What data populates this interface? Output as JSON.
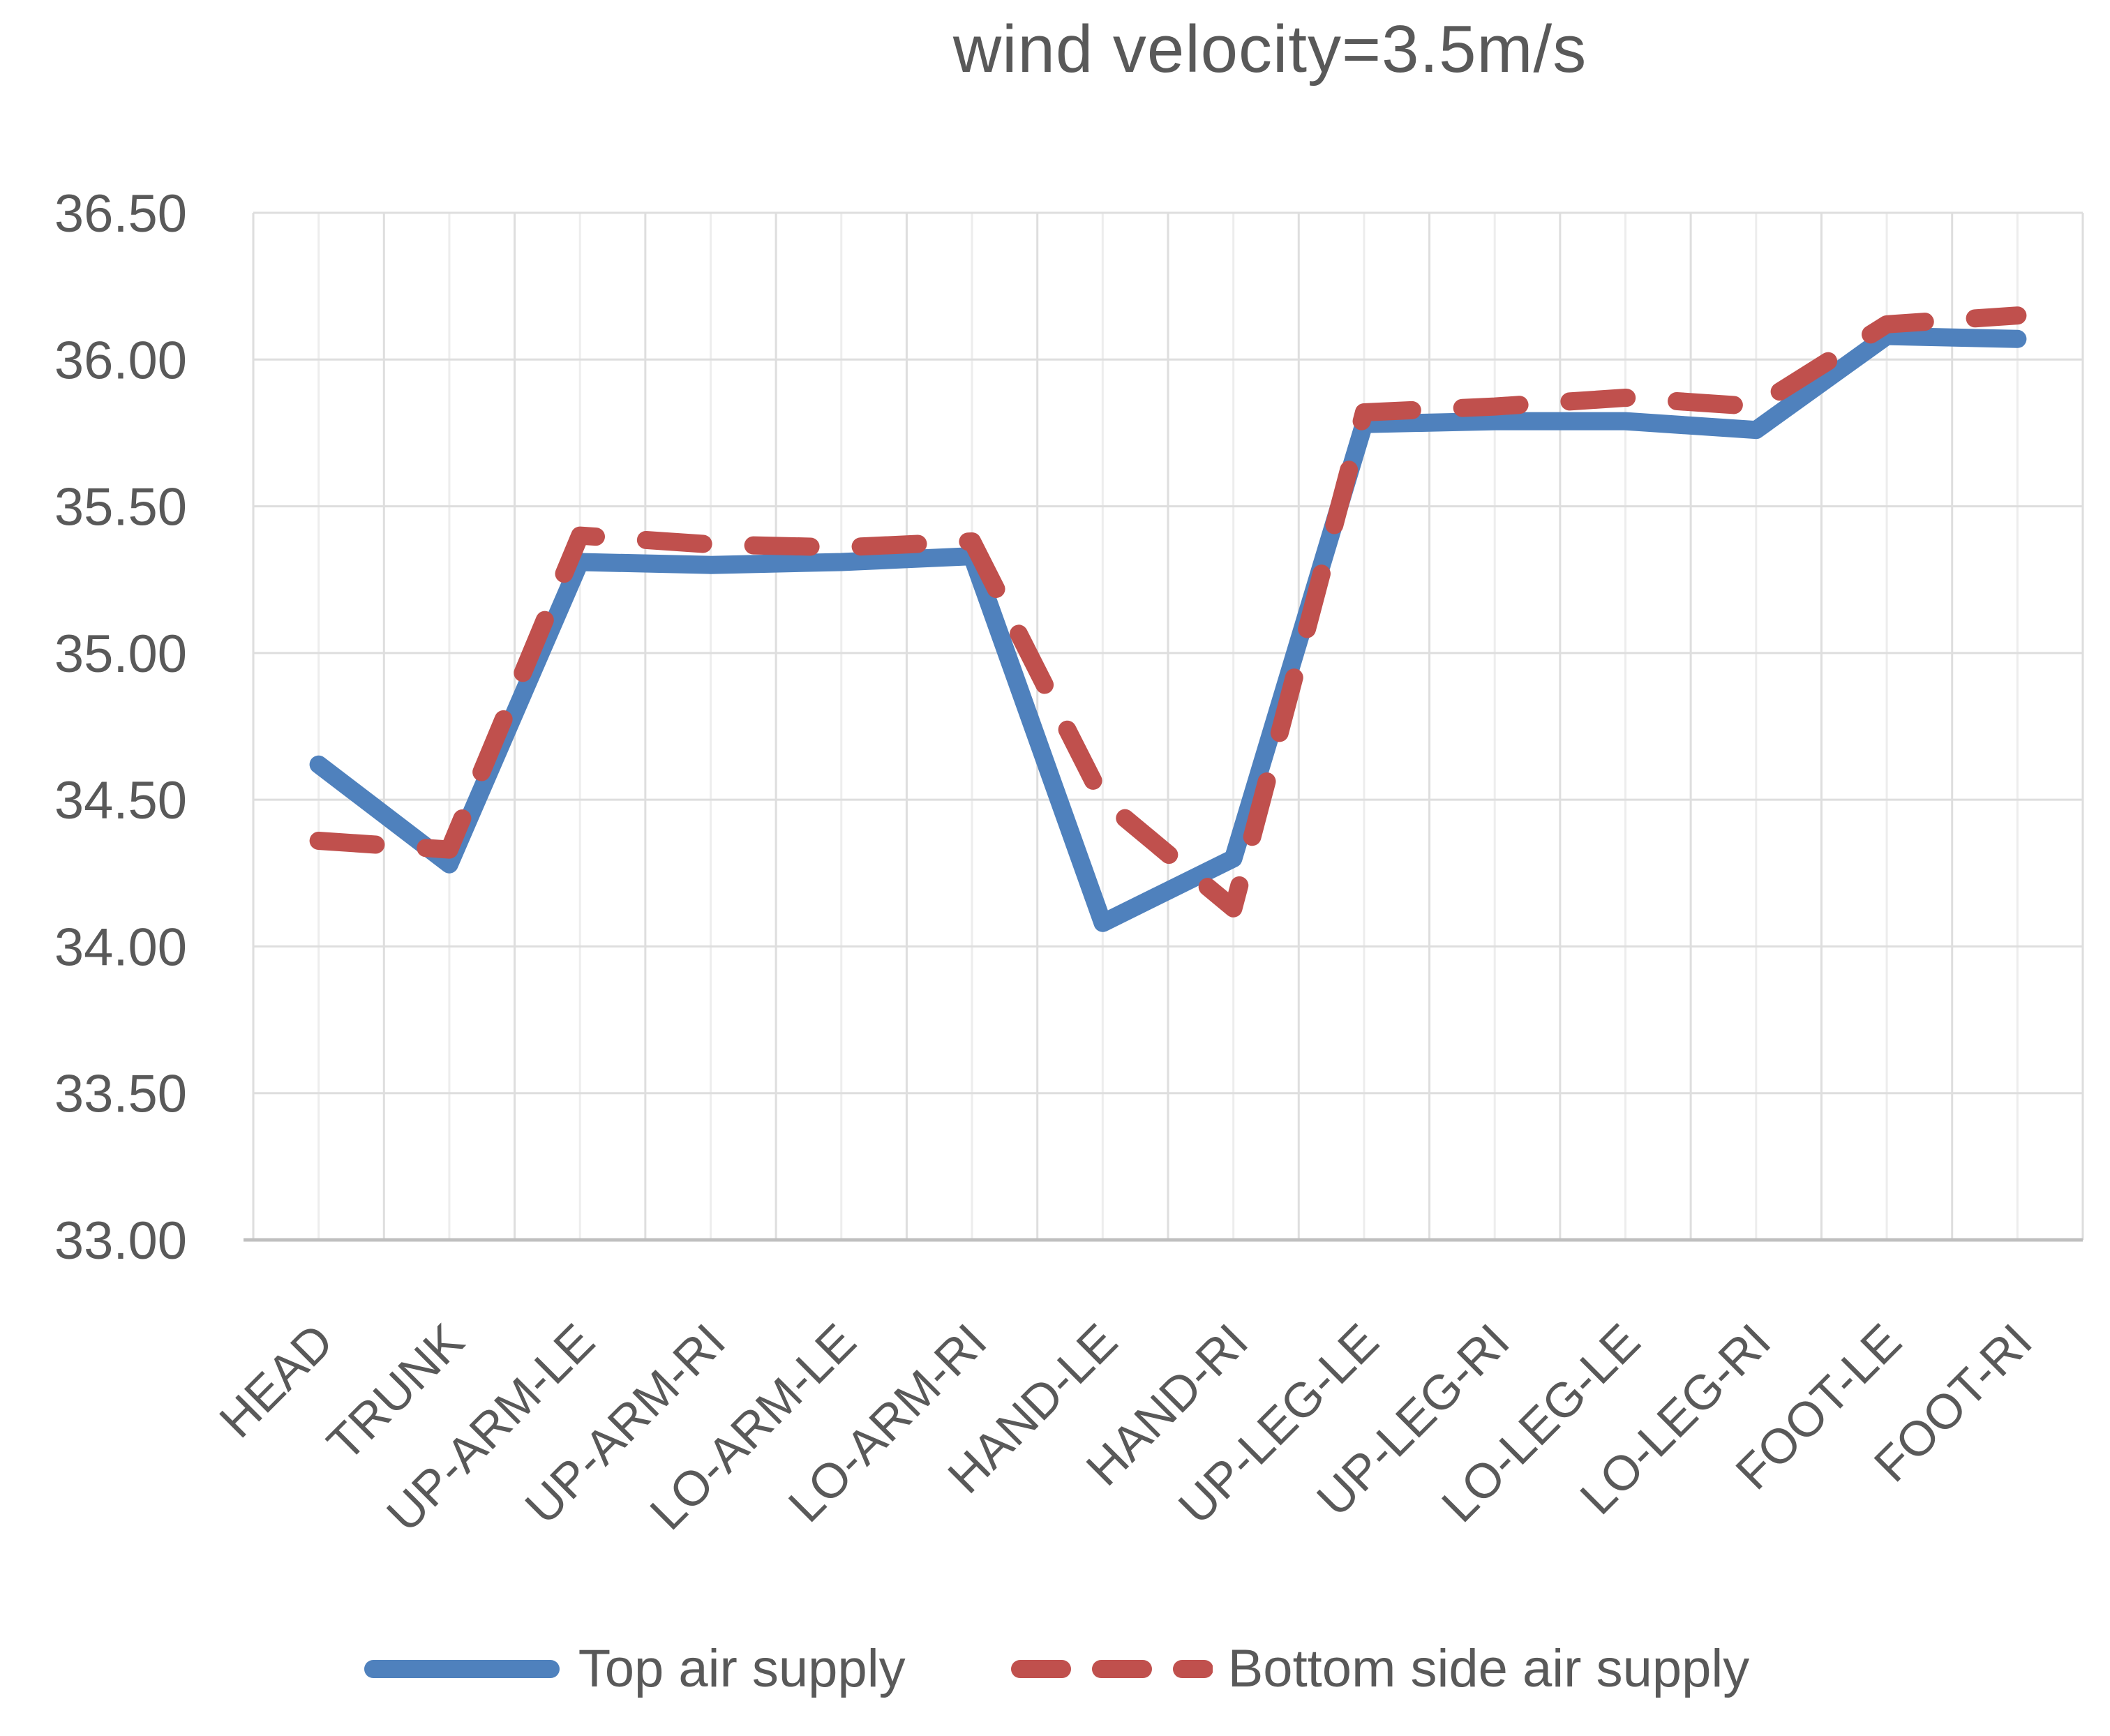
{
  "chart_data": {
    "type": "line",
    "title": "wind velocity=3.5m/s",
    "categories": [
      "HEAD",
      "TRUNK",
      "UP-ARM-LE",
      "UP-ARM-RI",
      "LO-ARM-LE",
      "LO-ARM-RI",
      "HAND-LE",
      "HAND-RI",
      "UP-LEG-LE",
      "UP-LEG-RI",
      "LO-LEG-LE",
      "LO-LEG-RI",
      "FOOT-LE",
      "FOOT-RI"
    ],
    "series": [
      {
        "name": "Top air supply",
        "color": "#4F81BD",
        "style": "solid",
        "values": [
          34.62,
          34.28,
          35.31,
          35.3,
          35.31,
          35.33,
          34.08,
          34.3,
          35.78,
          35.79,
          35.79,
          35.76,
          36.08,
          36.07
        ]
      },
      {
        "name": "Bottom side air supply",
        "color": "#C0504D",
        "style": "dashed",
        "values": [
          34.36,
          34.33,
          35.4,
          35.37,
          35.36,
          35.38,
          34.5,
          34.13,
          35.82,
          35.84,
          35.87,
          35.84,
          36.12,
          36.15
        ]
      }
    ],
    "ylim": [
      33.0,
      36.5
    ],
    "ytick_step": 0.5,
    "ytick_labels": [
      "33.00",
      "33.50",
      "34.00",
      "34.50",
      "35.00",
      "35.50",
      "36.00",
      "36.50"
    ],
    "grid": true,
    "legend_position": "bottom",
    "title_color": "#595959",
    "axis_text_color": "#595959",
    "gridline_color": "#DEDEDE",
    "minor_gridline_color": "#EDEDED",
    "axis_line_color": "#BFBFBF"
  }
}
